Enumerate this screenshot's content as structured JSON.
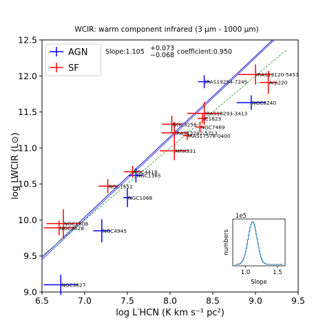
{
  "colors": {
    "agn": "#0000ff",
    "sf": "#ff0000",
    "title": "#b03030",
    "fit": "#1a1aa8",
    "oneToOne": "#2ca02c",
    "inset": "#1f77b4"
  },
  "chart_data": {
    "type": "scatter",
    "title": "WCIR: warm component infrared (3 μm - 1000 μm)",
    "xlabel": "log L′HCN (K km s⁻¹ pc²)",
    "ylabel": "log LWCIR (L⊙)",
    "xlim": [
      6.5,
      9.5
    ],
    "ylim": [
      9.0,
      12.5
    ],
    "xticks": [
      "6.5",
      "7.0",
      "7.5",
      "8.0",
      "8.5",
      "9.0",
      "9.5"
    ],
    "yticks": [
      "9.0",
      "9.5",
      "10.0",
      "10.5",
      "11.0",
      "11.5",
      "12.0",
      "12.5"
    ],
    "legend": {
      "position": "top-left",
      "entries": [
        "AGN",
        "SF"
      ]
    },
    "annotation": {
      "slope_text": "Slope:1.105",
      "slope_sup": "+0.073",
      "slope_sub": "−0.068",
      "coefficient_text": "coefficient:0.950"
    },
    "series": [
      {
        "name": "AGN",
        "points": [
          {
            "label": "NGC3627",
            "x": 6.72,
            "y": 9.1,
            "xerr": 0.2,
            "yerr": 0.14
          },
          {
            "label": "NGC4945",
            "x": 7.2,
            "y": 9.85,
            "xerr": 0.1,
            "yerr": 0.16
          },
          {
            "label": "NGC1068",
            "x": 7.5,
            "y": 10.31,
            "xerr": 0.05,
            "yerr": 0.13
          },
          {
            "label": "NGC1365",
            "x": 7.6,
            "y": 10.62,
            "xerr": 0.08,
            "yerr": 0.1
          },
          {
            "label": "IRAS19254-7245",
            "x": 8.4,
            "y": 11.92,
            "xerr": 0.07,
            "yerr": 0.09
          },
          {
            "label": "NGC6240",
            "x": 8.95,
            "y": 11.63,
            "xerr": 0.17,
            "yerr": 0.1
          }
        ]
      },
      {
        "name": "SF",
        "points": [
          {
            "label": "NGC1808",
            "x": 6.75,
            "y": 9.95,
            "xerr": 0.2,
            "yerr": 0.2
          },
          {
            "label": "NGC3628",
            "x": 6.7,
            "y": 9.89,
            "xerr": 0.18,
            "yerr": 0.1
          },
          {
            "label": "NGC7552",
            "x": 7.27,
            "y": 10.47,
            "xerr": 0.11,
            "yerr": 0.1
          },
          {
            "label": "NGC4418",
            "x": 7.56,
            "y": 10.67,
            "xerr": 0.1,
            "yerr": 0.08
          },
          {
            "label": "MRK331",
            "x": 8.05,
            "y": 10.96,
            "xerr": 0.17,
            "yerr": 0.13
          },
          {
            "label": "IRAS17578-0400",
            "x": 8.2,
            "y": 11.17,
            "xerr": 0.05,
            "yerr": 0.06
          },
          {
            "label": "IRAS13242-5713",
            "x": 8.05,
            "y": 11.21,
            "xerr": 0.15,
            "yerr": 0.15
          },
          {
            "label": "NGC7469",
            "x": 8.35,
            "y": 11.29,
            "xerr": 0.05,
            "yerr": 0.07
          },
          {
            "label": "NGC3256",
            "x": 8.02,
            "y": 11.33,
            "xerr": 0.12,
            "yerr": 0.12
          },
          {
            "label": "IC1623",
            "x": 8.38,
            "y": 11.41,
            "xerr": 0.06,
            "yerr": 0.07
          },
          {
            "label": "IRAS18293-3413",
            "x": 8.4,
            "y": 11.48,
            "xerr": 0.2,
            "yerr": 0.16
          },
          {
            "label": "IRAS13120-5453",
            "x": 9.0,
            "y": 12.02,
            "xerr": 0.2,
            "yerr": 0.14
          },
          {
            "label": "Arp220",
            "x": 9.15,
            "y": 11.91,
            "xerr": 0.1,
            "yerr": 0.16
          }
        ]
      }
    ],
    "fit_lines": [
      {
        "name": "fit",
        "x": [
          6.5,
          9.2
        ],
        "y": [
          9.48,
          12.5
        ]
      },
      {
        "name": "fit-alt",
        "x": [
          6.5,
          9.22
        ],
        "y": [
          9.45,
          12.5
        ]
      },
      {
        "name": "fixed-slope",
        "x": [
          6.5,
          9.37
        ],
        "y": [
          9.5,
          12.37
        ]
      }
    ],
    "inset": {
      "type": "histogram",
      "title_exponent": "1e5",
      "xlabel": "Slope",
      "ylabel": "numbers",
      "xticks": [
        "1.0",
        "1.5"
      ],
      "xlim": [
        0.8,
        1.62
      ],
      "peak_x": 1.105,
      "sigma": 0.07
    }
  }
}
